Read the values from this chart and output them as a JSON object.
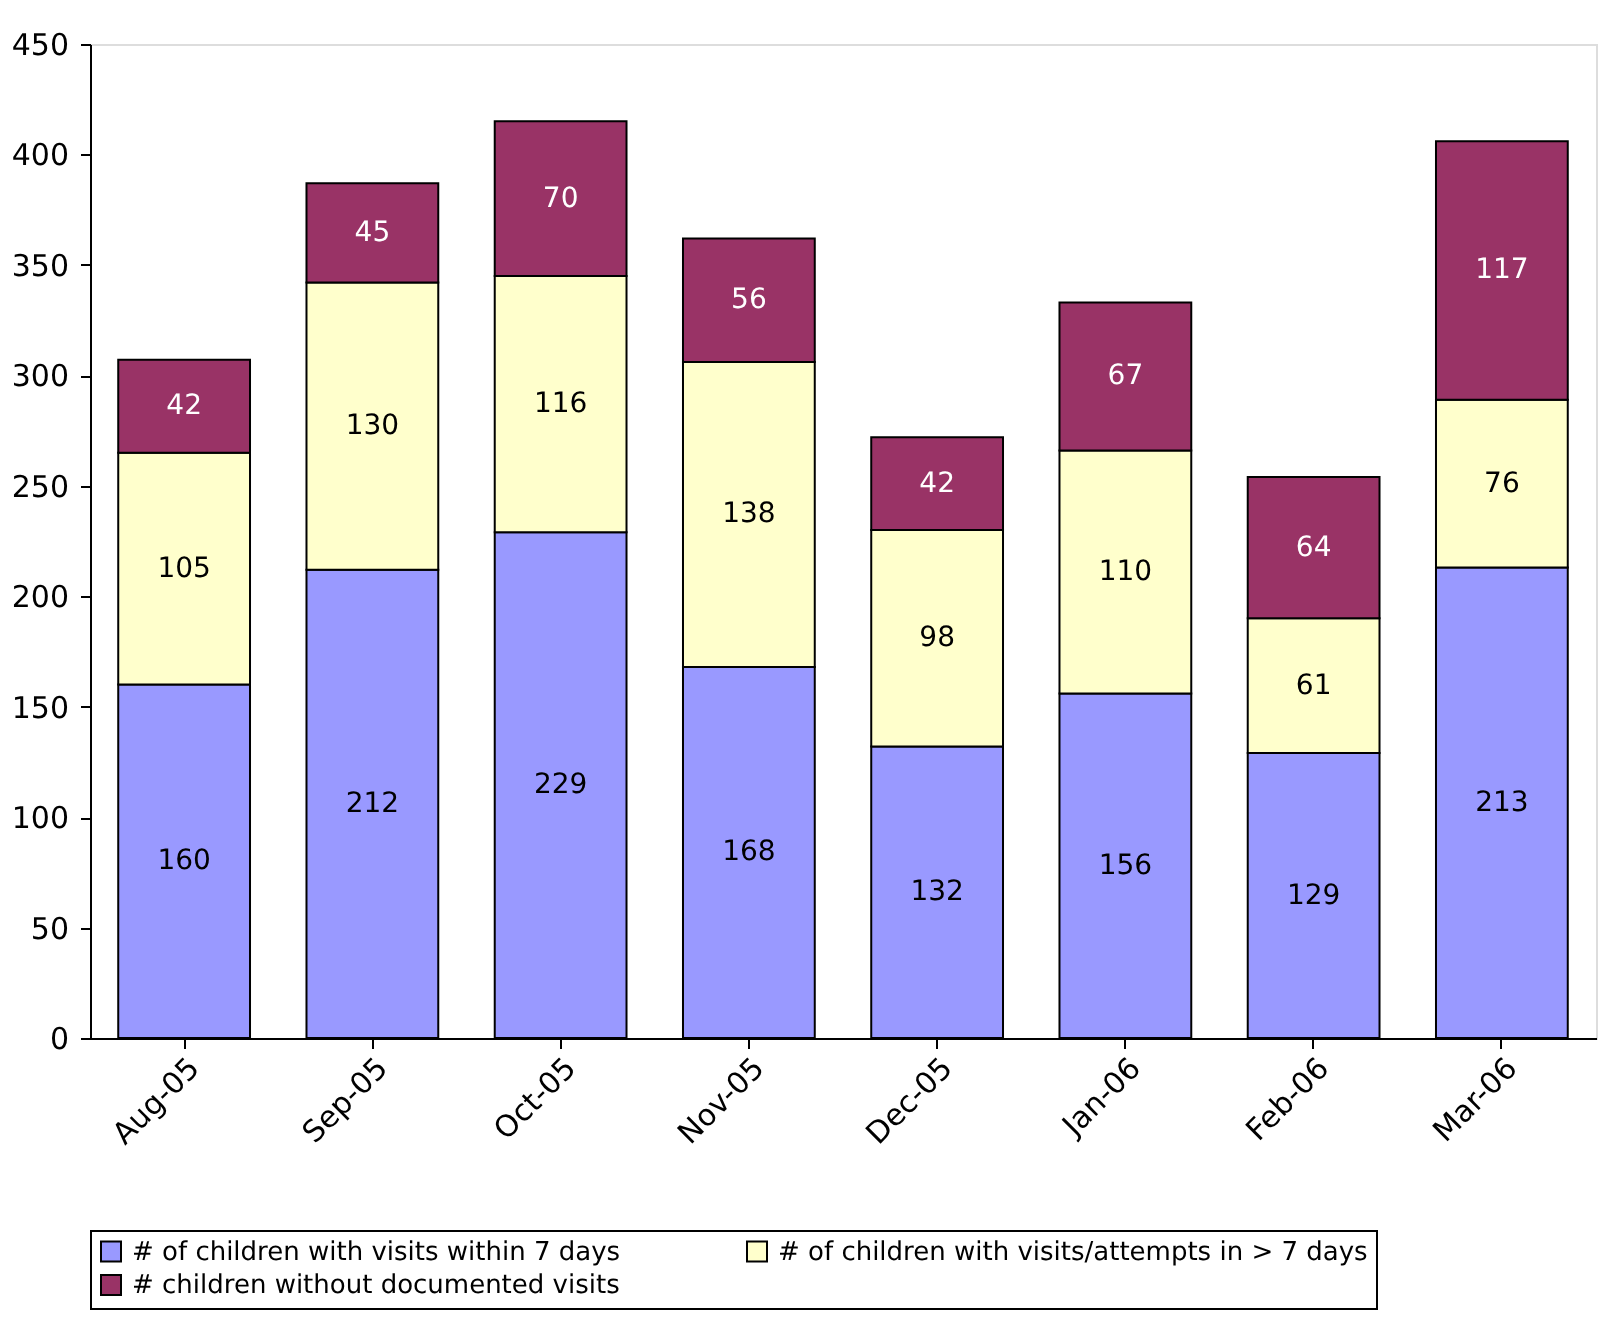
{
  "chart_data": {
    "type": "bar",
    "stacked": true,
    "categories": [
      "Aug-05",
      "Sep-05",
      "Oct-05",
      "Nov-05",
      "Dec-05",
      "Jan-06",
      "Feb-06",
      "Mar-06"
    ],
    "series": [
      {
        "name": "# of children with visits within 7 days",
        "color": "#9999ff",
        "values": [
          160,
          212,
          229,
          168,
          132,
          156,
          129,
          213
        ]
      },
      {
        "name": "# of children with visits/attempts in > 7 days",
        "color": "#ffffcc",
        "values": [
          105,
          130,
          116,
          138,
          98,
          110,
          61,
          76
        ]
      },
      {
        "name": "# children without documented visits",
        "color": "#993366",
        "values": [
          42,
          45,
          70,
          56,
          42,
          67,
          64,
          117
        ]
      }
    ],
    "ylim": [
      0,
      450
    ],
    "yticks": [
      0,
      50,
      100,
      150,
      200,
      250,
      300,
      350,
      400,
      450
    ],
    "data_labels": true,
    "grid": false,
    "legend": "bottom"
  }
}
